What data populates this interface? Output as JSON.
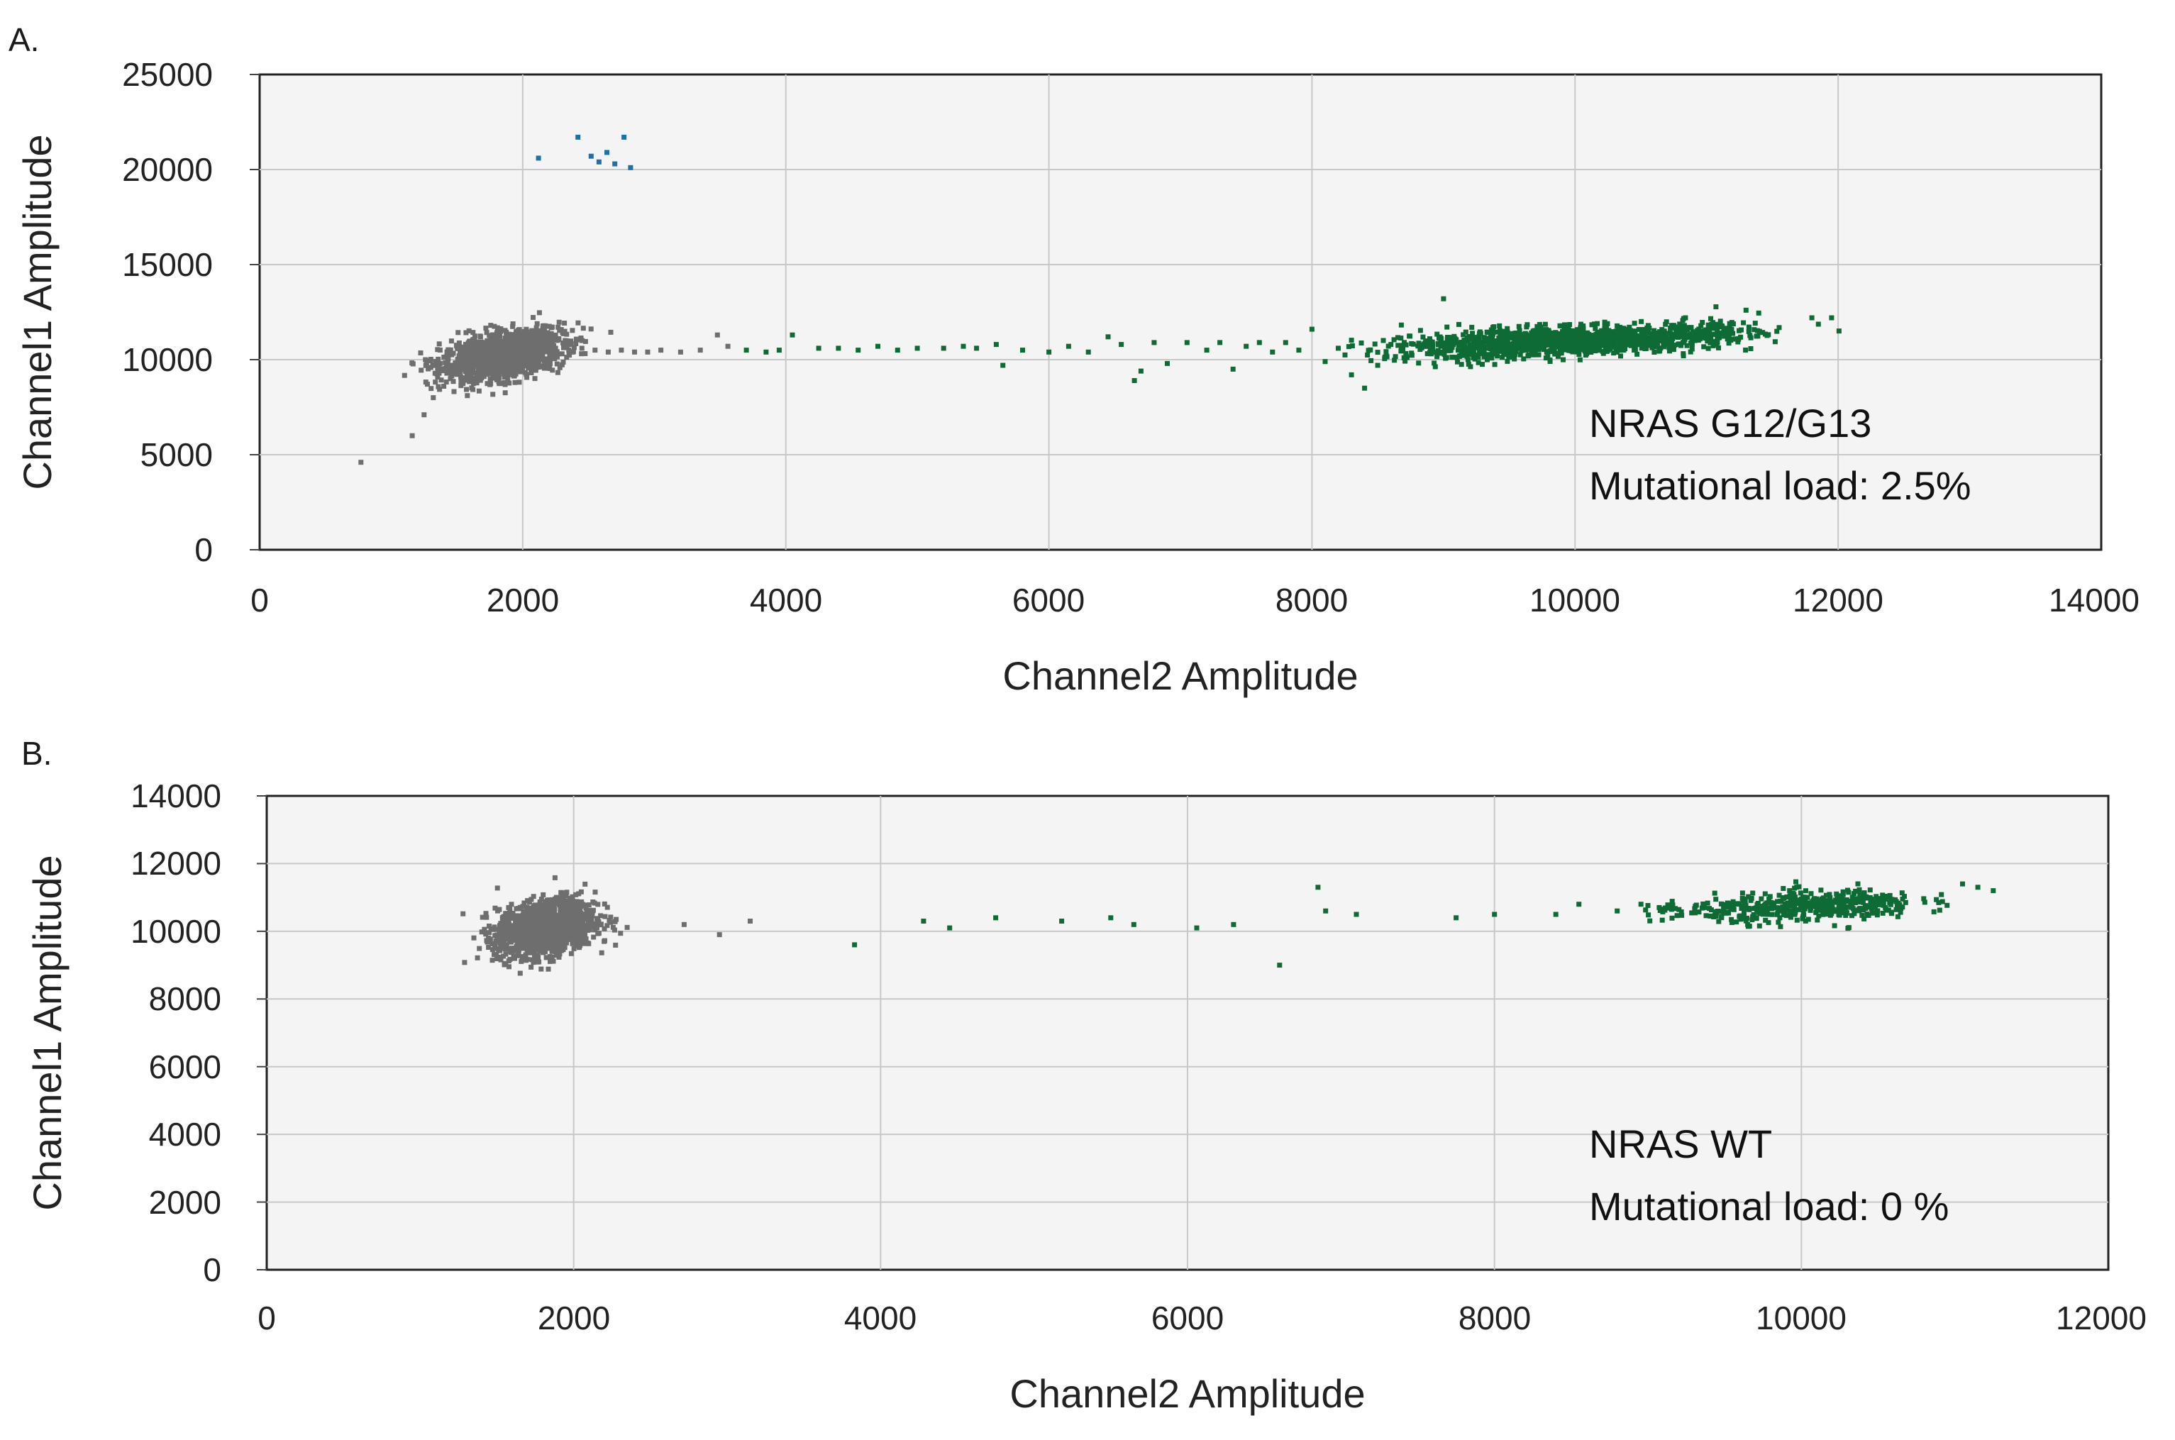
{
  "chart_data": [
    {
      "panel_label": "A.",
      "type": "scatter",
      "xlabel": "Channel2 Amplitude",
      "ylabel": "Channel1 Amplitude",
      "xlim": [
        0,
        14000
      ],
      "ylim": [
        0,
        25000
      ],
      "xticks": [
        "0",
        "2000",
        "4000",
        "6000",
        "8000",
        "10000",
        "12000",
        "14000"
      ],
      "yticks": [
        "0",
        "5000",
        "10000",
        "15000",
        "20000",
        "25000"
      ],
      "grid": true,
      "annotation": [
        "NRAS G12/G13",
        "Mutational load: 2.5%"
      ],
      "series": [
        {
          "color": "#6e6e6e",
          "clusters": [
            {
              "cx": 1850,
              "cy": 10200,
              "sx": 230,
              "sy": 650,
              "n": 1400,
              "rho": 0.45
            }
          ],
          "points": [
            [
              770,
              4600
            ],
            [
              1160,
              6000
            ],
            [
              1250,
              7100
            ],
            [
              1320,
              8000
            ],
            [
              1400,
              8600
            ],
            [
              1450,
              9000
            ],
            [
              2250,
              10600
            ],
            [
              2350,
              10500
            ],
            [
              2450,
              10600
            ],
            [
              2550,
              10500
            ],
            [
              2650,
              10400
            ],
            [
              2750,
              10500
            ],
            [
              2850,
              10400
            ],
            [
              2950,
              10400
            ],
            [
              3050,
              10500
            ],
            [
              3200,
              10400
            ],
            [
              3350,
              10500
            ],
            [
              3480,
              11300
            ],
            [
              3560,
              10700
            ]
          ]
        },
        {
          "color": "#0f6b35",
          "clusters": [
            {
              "cx": 10000,
              "cy": 11000,
              "sx": 560,
              "sy": 380,
              "n": 1200,
              "rho": 0.35
            },
            {
              "cx": 9100,
              "cy": 10600,
              "sx": 300,
              "sy": 450,
              "n": 140,
              "rho": 0.2
            },
            {
              "cx": 11050,
              "cy": 11500,
              "sx": 180,
              "sy": 350,
              "n": 80,
              "rho": 0.2
            }
          ],
          "points": [
            [
              3700,
              10500
            ],
            [
              3850,
              10400
            ],
            [
              3950,
              10500
            ],
            [
              4050,
              11300
            ],
            [
              4250,
              10600
            ],
            [
              4400,
              10600
            ],
            [
              4550,
              10500
            ],
            [
              4700,
              10700
            ],
            [
              4850,
              10500
            ],
            [
              5000,
              10600
            ],
            [
              5200,
              10600
            ],
            [
              5350,
              10700
            ],
            [
              5450,
              10600
            ],
            [
              5600,
              10800
            ],
            [
              5650,
              9700
            ],
            [
              5800,
              10500
            ],
            [
              6000,
              10400
            ],
            [
              6150,
              10700
            ],
            [
              6300,
              10400
            ],
            [
              6450,
              11200
            ],
            [
              6550,
              10800
            ],
            [
              6650,
              8900
            ],
            [
              6700,
              9400
            ],
            [
              6800,
              10900
            ],
            [
              6900,
              9800
            ],
            [
              7050,
              10900
            ],
            [
              7200,
              10500
            ],
            [
              7300,
              10900
            ],
            [
              7400,
              9500
            ],
            [
              7500,
              10700
            ],
            [
              7600,
              10900
            ],
            [
              7700,
              10400
            ],
            [
              7800,
              10900
            ],
            [
              7900,
              10500
            ],
            [
              8000,
              11600
            ],
            [
              8100,
              9900
            ],
            [
              8200,
              10600
            ],
            [
              8300,
              9200
            ],
            [
              8400,
              8500
            ],
            [
              8500,
              9700
            ],
            [
              8600,
              10800
            ],
            [
              8700,
              10100
            ],
            [
              9000,
              13200
            ],
            [
              11300,
              12600
            ],
            [
              11800,
              12200
            ],
            [
              11950,
              12200
            ]
          ]
        },
        {
          "color": "#1f6fa8",
          "points": [
            [
              2120,
              20600
            ],
            [
              2420,
              21700
            ],
            [
              2520,
              20700
            ],
            [
              2580,
              20400
            ],
            [
              2640,
              20900
            ],
            [
              2700,
              20300
            ],
            [
              2770,
              21700
            ],
            [
              2820,
              20100
            ]
          ]
        }
      ]
    },
    {
      "panel_label": "B.",
      "type": "scatter",
      "xlabel": "Channel2 Amplitude",
      "ylabel": "Channel1 Amplitude",
      "xlim": [
        0,
        12000
      ],
      "ylim": [
        0,
        14000
      ],
      "xticks": [
        "0",
        "2000",
        "4000",
        "6000",
        "8000",
        "10000",
        "12000"
      ],
      "yticks": [
        "0",
        "2000",
        "4000",
        "6000",
        "8000",
        "10000",
        "12000",
        "14000"
      ],
      "grid": true,
      "annotation": [
        "NRAS WT",
        "Mutational load: 0 %"
      ],
      "series": [
        {
          "color": "#6e6e6e",
          "clusters": [
            {
              "cx": 1820,
              "cy": 10100,
              "sx": 160,
              "sy": 420,
              "n": 1400,
              "rho": 0.3
            }
          ],
          "points": [
            [
              2720,
              10200
            ],
            [
              2950,
              9900
            ],
            [
              3150,
              10300
            ]
          ]
        },
        {
          "color": "#0f6b35",
          "clusters": [
            {
              "cx": 10100,
              "cy": 10750,
              "sx": 330,
              "sy": 230,
              "n": 420,
              "rho": 0.25
            },
            {
              "cx": 9300,
              "cy": 10600,
              "sx": 200,
              "sy": 180,
              "n": 50,
              "rho": 0.1
            }
          ],
          "points": [
            [
              3830,
              9600
            ],
            [
              4280,
              10300
            ],
            [
              4450,
              10100
            ],
            [
              4750,
              10400
            ],
            [
              5180,
              10300
            ],
            [
              5500,
              10400
            ],
            [
              5650,
              10200
            ],
            [
              6060,
              10100
            ],
            [
              6300,
              10200
            ],
            [
              6600,
              9000
            ],
            [
              6850,
              11300
            ],
            [
              6900,
              10600
            ],
            [
              7100,
              10500
            ],
            [
              7750,
              10400
            ],
            [
              8000,
              10500
            ],
            [
              8400,
              10500
            ],
            [
              8550,
              10800
            ],
            [
              8800,
              10600
            ],
            [
              11050,
              11400
            ],
            [
              11150,
              11300
            ],
            [
              11250,
              11200
            ]
          ]
        }
      ]
    }
  ]
}
